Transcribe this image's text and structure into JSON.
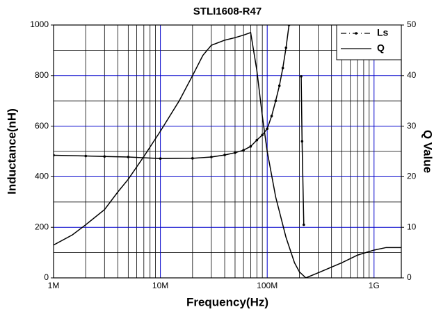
{
  "chart_data": {
    "type": "line",
    "title": "STLI1608-R47",
    "xlabel": "Frequency(Hz)",
    "ylabel": "Inductance(nH)",
    "y2label": "Q Value",
    "xscale": "log",
    "xlim": [
      1000000,
      1800000000
    ],
    "xticks": [
      {
        "value": 1000000,
        "label": "1M"
      },
      {
        "value": 10000000,
        "label": "10M"
      },
      {
        "value": 100000000,
        "label": "100M"
      },
      {
        "value": 1000000000,
        "label": "1G"
      }
    ],
    "xminor": [
      2000000,
      3000000,
      4000000,
      5000000,
      6000000,
      7000000,
      8000000,
      9000000,
      20000000,
      30000000,
      40000000,
      50000000,
      60000000,
      70000000,
      80000000,
      90000000,
      200000000,
      300000000,
      400000000,
      500000000,
      600000000,
      700000000,
      800000000,
      900000000
    ],
    "ylim": [
      0,
      1000
    ],
    "yticks": [
      0,
      200,
      400,
      600,
      800,
      1000
    ],
    "yminor": [
      100,
      300,
      500,
      700,
      900
    ],
    "y2lim": [
      0,
      50
    ],
    "y2ticks": [
      0,
      10,
      20,
      30,
      40,
      50
    ],
    "grid": true,
    "grid_color": "#0000cc",
    "minor_grid_color": "#000000",
    "legend": "upper right",
    "series": [
      {
        "name": "Ls",
        "color": "#000000",
        "marker": "dot",
        "x": [
          1000000,
          2000000,
          3000000,
          5000000,
          10000000,
          20000000,
          30000000,
          40000000,
          50000000,
          60000000,
          70000000,
          80000000,
          90000000,
          100000000,
          110000000,
          120000000,
          130000000,
          140000000,
          150000000,
          160000000,
          180000000,
          208000000,
          212000000,
          220000000
        ],
        "values": [
          485,
          482,
          480,
          478,
          472,
          473,
          478,
          486,
          495,
          505,
          520,
          545,
          565,
          590,
          640,
          700,
          760,
          830,
          910,
          1000,
          null,
          797,
          540,
          210
        ]
      },
      {
        "name": "Q",
        "color": "#000000",
        "axis": "y2",
        "x": [
          1000000,
          1500000,
          2000000,
          3000000,
          4000000,
          5000000,
          7000000,
          10000000,
          15000000,
          20000000,
          25000000,
          30000000,
          40000000,
          50000000,
          60000000,
          70000000,
          80000000,
          90000000,
          100000000,
          120000000,
          150000000,
          180000000,
          200000000,
          230000000,
          300000000,
          500000000,
          700000000,
          1000000000,
          1300000000,
          1800000000
        ],
        "values": [
          6.5,
          8.5,
          10.5,
          13.5,
          17,
          19.5,
          24,
          29,
          35,
          40,
          44,
          46,
          47,
          47.5,
          48,
          48.5,
          41,
          32,
          25,
          16,
          8,
          3,
          1.2,
          0,
          1,
          3,
          4.5,
          5.5,
          6,
          6
        ]
      }
    ]
  }
}
